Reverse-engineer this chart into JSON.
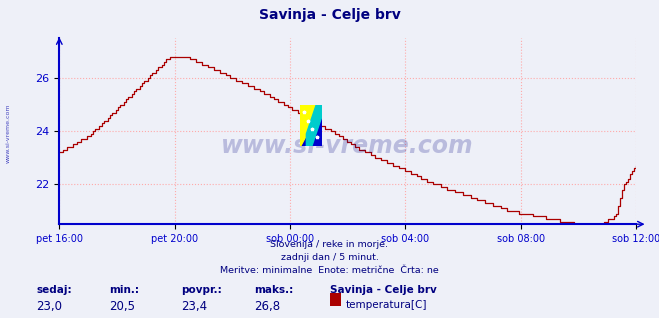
{
  "title": "Savinja - Celje brv",
  "title_color": "#000080",
  "bg_color": "#eef0f8",
  "plot_bg_color": "#eef0f8",
  "line_color": "#aa0000",
  "axis_color": "#0000cc",
  "grid_color": "#ffaaaa",
  "grid_style": ":",
  "ylim": [
    20.5,
    27.5
  ],
  "yticks": [
    22,
    24,
    26
  ],
  "xlabel_ticks": [
    "pet 16:00",
    "pet 20:00",
    "sob 00:00",
    "sob 04:00",
    "sob 08:00",
    "sob 12:00"
  ],
  "footer_lines": [
    "Slovenija / reke in morje.",
    "zadnji dan / 5 minut.",
    "Meritve: minimalne  Enote: metrične  Črta: ne"
  ],
  "footer_color": "#000080",
  "stats_labels": [
    "sedaj:",
    "min.:",
    "povpr.:",
    "maks.:"
  ],
  "stats_values": [
    "23,0",
    "20,5",
    "23,4",
    "26,8"
  ],
  "legend_title": "Savinja - Celje brv",
  "legend_label": "temperatura[C]",
  "legend_color": "#aa0000",
  "watermark": "www.si-vreme.com",
  "watermark_color": "#000080",
  "sidebar_text": "www.si-vreme.com",
  "sidebar_color": "#0000aa"
}
